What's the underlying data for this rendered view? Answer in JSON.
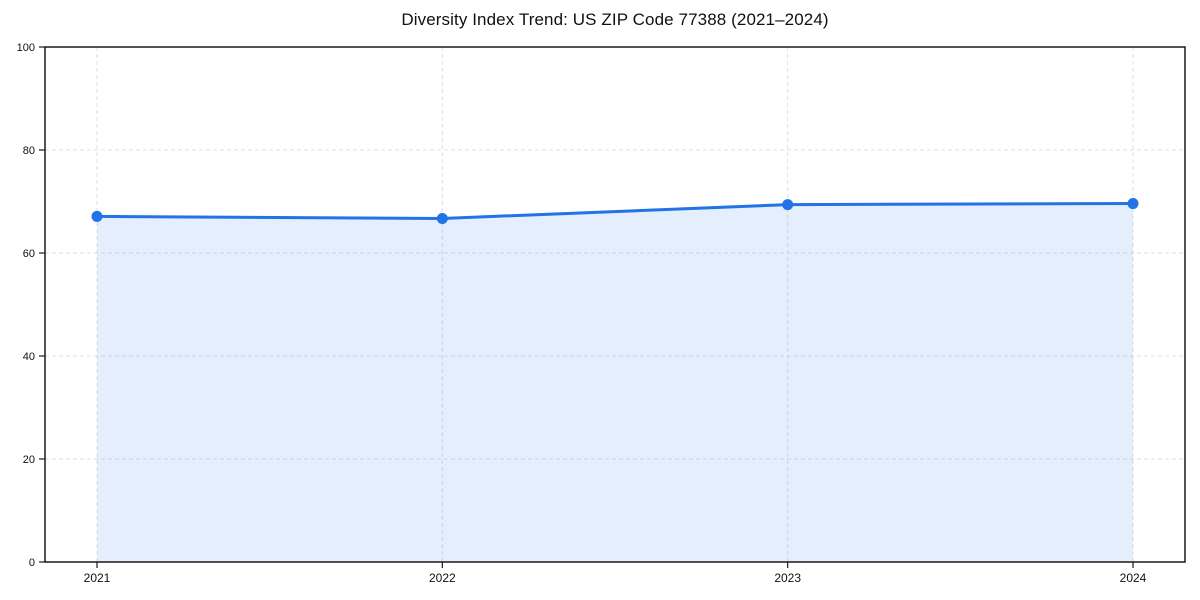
{
  "title": "Diversity Index Trend: US ZIP Code 77388 (2021–2024)",
  "chart_data": {
    "type": "area",
    "title": "Diversity Index Trend: US ZIP Code 77388 (2021–2024)",
    "series_name": "Diversity Index",
    "categories": [
      "2021",
      "2022",
      "2023",
      "2024"
    ],
    "values": [
      67.1,
      66.7,
      69.4,
      69.6
    ],
    "xlabel": "",
    "ylabel": "",
    "ylim": [
      0,
      100
    ],
    "yticks": [
      0,
      20,
      40,
      60,
      80,
      100
    ],
    "grid": true,
    "grid_style": "dashed",
    "legend": false,
    "colors": {
      "line": "#2273e5",
      "fill": "#2273e5",
      "fill_opacity": 0.12,
      "marker": "#2273e5",
      "grid": "#dfdfdf",
      "spine": "#1a1a1a",
      "text": "#111111",
      "background": "#ffffff"
    }
  }
}
